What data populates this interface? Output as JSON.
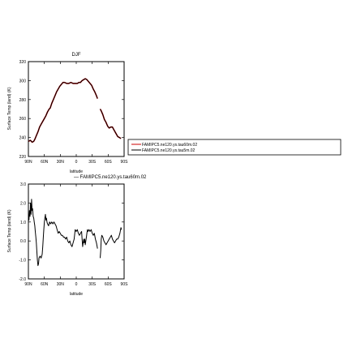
{
  "title": "DJF",
  "legend": {
    "entries": [
      {
        "label": "FAMIPC5.ne120.ys.tau60m.02",
        "color": "#cc0000"
      },
      {
        "label": "FAMIPC5.ne120.ys.tau5m.02",
        "color": "#000000"
      }
    ]
  },
  "diff_label": "— FAMIPC5.ne120.ys.tau60m.02",
  "chart_data": [
    {
      "type": "line",
      "title": "DJF",
      "xlabel": "latitude",
      "ylabel": "Surface Temp (land) (K)",
      "xlim": [
        90,
        -90
      ],
      "ylim": [
        220,
        320
      ],
      "x_ticks": [
        90,
        60,
        30,
        0,
        -30,
        -60,
        -90
      ],
      "x_tick_labels": [
        "90N",
        "60N",
        "30N",
        "0",
        "30S",
        "60S",
        "90S"
      ],
      "y_ticks": [
        220,
        240,
        260,
        280,
        300,
        320
      ],
      "y_tick_labels": [
        "220",
        "240",
        "260",
        "280",
        "300",
        "320"
      ],
      "series": [
        {
          "name": "FAMIPC5.ne120.ys.tau60m.02",
          "color": "#cc0000",
          "segments": [
            [
              [
                90,
                236
              ],
              [
                86,
                237
              ],
              [
                83,
                235
              ],
              [
                80,
                236
              ],
              [
                78,
                238
              ],
              [
                75,
                242
              ],
              [
                72,
                246
              ],
              [
                69,
                251
              ],
              [
                66,
                254
              ],
              [
                63,
                257
              ],
              [
                60,
                260
              ],
              [
                57,
                263
              ],
              [
                54,
                267
              ],
              [
                51,
                270
              ],
              [
                49,
                271
              ],
              [
                46,
                276
              ],
              [
                43,
                280
              ],
              [
                40,
                284
              ],
              [
                37,
                288
              ],
              [
                34,
                291
              ],
              [
                31,
                294
              ],
              [
                28,
                296
              ],
              [
                25,
                298
              ],
              [
                22,
                298
              ],
              [
                18,
                297
              ],
              [
                14,
                297
              ],
              [
                10,
                298
              ],
              [
                6,
                297
              ],
              [
                2,
                297
              ],
              [
                -2,
                297
              ],
              [
                -5,
                298
              ],
              [
                -8,
                298
              ],
              [
                -11,
                300
              ],
              [
                -14,
                301
              ],
              [
                -17,
                302
              ],
              [
                -20,
                301
              ],
              [
                -23,
                299
              ],
              [
                -26,
                297
              ],
              [
                -29,
                295
              ],
              [
                -32,
                291
              ],
              [
                -35,
                288
              ],
              [
                -38,
                284
              ],
              [
                -40,
                281
              ]
            ],
            [
              [
                -45,
                270
              ],
              [
                -47,
                268
              ],
              [
                -50,
                264
              ],
              [
                -53,
                259
              ],
              [
                -56,
                256
              ],
              [
                -59,
                252
              ],
              [
                -62,
                250
              ],
              [
                -65,
                251
              ],
              [
                -68,
                251
              ],
              [
                -71,
                248
              ],
              [
                -74,
                245
              ],
              [
                -78,
                241
              ],
              [
                -81,
                240
              ],
              [
                -84,
                239
              ]
            ]
          ]
        },
        {
          "name": "FAMIPC5.ne120.ys.tau5m.02",
          "color": "#000000",
          "segments": [
            [
              [
                90,
                236
              ],
              [
                86,
                237
              ],
              [
                83,
                235
              ],
              [
                80,
                236
              ],
              [
                78,
                238
              ],
              [
                75,
                242
              ],
              [
                72,
                246
              ],
              [
                69,
                251
              ],
              [
                66,
                254
              ],
              [
                63,
                257
              ],
              [
                60,
                260
              ],
              [
                57,
                263
              ],
              [
                54,
                267
              ],
              [
                51,
                270
              ],
              [
                49,
                271
              ],
              [
                46,
                276
              ],
              [
                43,
                280
              ],
              [
                40,
                284
              ],
              [
                37,
                288
              ],
              [
                34,
                291
              ],
              [
                31,
                294
              ],
              [
                28,
                296
              ],
              [
                25,
                298
              ],
              [
                22,
                298
              ],
              [
                18,
                297
              ],
              [
                14,
                297
              ],
              [
                10,
                298
              ],
              [
                6,
                297
              ],
              [
                2,
                297
              ],
              [
                -2,
                297
              ],
              [
                -5,
                298
              ],
              [
                -8,
                298
              ],
              [
                -11,
                300
              ],
              [
                -14,
                301
              ],
              [
                -17,
                302
              ],
              [
                -20,
                301
              ],
              [
                -23,
                299
              ],
              [
                -26,
                297
              ],
              [
                -29,
                295
              ],
              [
                -32,
                291
              ],
              [
                -35,
                288
              ],
              [
                -38,
                284
              ],
              [
                -40,
                281
              ]
            ],
            [
              [
                -45,
                270
              ],
              [
                -47,
                268
              ],
              [
                -50,
                264
              ],
              [
                -53,
                259
              ],
              [
                -56,
                256
              ],
              [
                -59,
                252
              ],
              [
                -62,
                250
              ],
              [
                -65,
                251
              ],
              [
                -68,
                251
              ],
              [
                -71,
                248
              ],
              [
                -74,
                245
              ],
              [
                -78,
                241
              ],
              [
                -81,
                240
              ],
              [
                -84,
                239
              ]
            ]
          ]
        }
      ]
    },
    {
      "type": "line",
      "xlabel": "latitude",
      "ylabel": "Surface Temp (land) (K)",
      "xlim": [
        90,
        -90
      ],
      "ylim": [
        -2.0,
        3.0
      ],
      "x_ticks": [
        90,
        60,
        30,
        0,
        -30,
        -60,
        -90
      ],
      "x_tick_labels": [
        "90N",
        "60N",
        "30N",
        "0",
        "30S",
        "60S",
        "90S"
      ],
      "y_ticks": [
        -2.0,
        -1.0,
        0.0,
        1.0,
        2.0,
        3.0
      ],
      "y_tick_labels": [
        "-2.0",
        "-1.0",
        "0.0",
        "1.0",
        "2.0",
        "3.0"
      ],
      "series": [
        {
          "name": "FAMIPC5.ne120.ys.tau60m.02",
          "color": "#000000",
          "segments": [
            [
              [
                90,
                1.4
              ],
              [
                89,
                1.1
              ],
              [
                88,
                1.6
              ],
              [
                87,
                1.3
              ],
              [
                86,
                2.0
              ],
              [
                85,
                1.4
              ],
              [
                84,
                2.2
              ],
              [
                83,
                1.6
              ],
              [
                82,
                1.7
              ],
              [
                81,
                1.3
              ],
              [
                80,
                1.2
              ],
              [
                79,
                1.0
              ],
              [
                78,
                0.8
              ],
              [
                77,
                0.5
              ],
              [
                76,
                0.2
              ],
              [
                75,
                -0.1
              ],
              [
                74,
                -0.6
              ],
              [
                73,
                -1.0
              ],
              [
                72,
                -1.3
              ],
              [
                71,
                -1.2
              ],
              [
                70,
                -0.9
              ],
              [
                68,
                -0.8
              ],
              [
                66,
                -0.9
              ],
              [
                64,
                -0.7
              ],
              [
                63,
                -0.3
              ],
              [
                62,
                0.2
              ],
              [
                61,
                0.6
              ],
              [
                60,
                1.0
              ],
              [
                59,
                1.2
              ],
              [
                58,
                1.4
              ],
              [
                57,
                1.1
              ],
              [
                56,
                1.2
              ],
              [
                55,
                1.0
              ],
              [
                54,
                0.9
              ],
              [
                52,
                0.8
              ],
              [
                50,
                1.0
              ],
              [
                48,
                0.9
              ],
              [
                46,
                1.0
              ],
              [
                44,
                0.9
              ],
              [
                42,
                1.0
              ],
              [
                40,
                0.9
              ],
              [
                38,
                0.8
              ],
              [
                36,
                0.6
              ],
              [
                34,
                0.4
              ],
              [
                32,
                0.5
              ],
              [
                30,
                0.4
              ],
              [
                28,
                0.3
              ],
              [
                26,
                0.3
              ],
              [
                24,
                0.2
              ],
              [
                22,
                0.2
              ],
              [
                20,
                0.1
              ],
              [
                18,
                0.2
              ],
              [
                16,
                0.0
              ],
              [
                14,
                -0.1
              ],
              [
                12,
                0.0
              ],
              [
                10,
                -0.2
              ],
              [
                8,
                -0.3
              ],
              [
                6,
                -0.1
              ],
              [
                4,
                0.1
              ],
              [
                2,
                0.6
              ],
              [
                0,
                0.5
              ],
              [
                -2,
                0.6
              ],
              [
                -4,
                0.4
              ],
              [
                -6,
                0.3
              ],
              [
                -8,
                0.4
              ],
              [
                -10,
                0.5
              ],
              [
                -11,
                0.1
              ],
              [
                -12,
                -0.3
              ],
              [
                -13,
                -0.1
              ],
              [
                -14,
                0.1
              ],
              [
                -15,
                -0.1
              ],
              [
                -16,
                0.1
              ],
              [
                -17,
                -0.2
              ],
              [
                -18,
                0.0
              ],
              [
                -19,
                0.2
              ],
              [
                -20,
                0.4
              ],
              [
                -21,
                0.6
              ],
              [
                -22,
                0.5
              ],
              [
                -24,
                0.6
              ],
              [
                -26,
                0.5
              ],
              [
                -28,
                0.6
              ],
              [
                -30,
                0.4
              ],
              [
                -32,
                0.3
              ],
              [
                -34,
                0.4
              ],
              [
                -36,
                0.1
              ],
              [
                -38,
                -0.1
              ],
              [
                -40,
                -0.4
              ]
            ],
            [
              [
                -45,
                -0.9
              ],
              [
                -46,
                -0.5
              ],
              [
                -47,
                0.1
              ],
              [
                -48,
                0.3
              ],
              [
                -50,
                0.2
              ],
              [
                -52,
                0.0
              ],
              [
                -54,
                -0.1
              ],
              [
                -56,
                -0.2
              ],
              [
                -58,
                -0.1
              ],
              [
                -60,
                0.0
              ],
              [
                -62,
                0.1
              ],
              [
                -64,
                0.2
              ],
              [
                -66,
                0.3
              ],
              [
                -68,
                0.1
              ],
              [
                -70,
                0.0
              ],
              [
                -72,
                -0.1
              ],
              [
                -74,
                0.0
              ],
              [
                -76,
                0.1
              ],
              [
                -78,
                0.1
              ],
              [
                -80,
                0.2
              ],
              [
                -82,
                0.4
              ],
              [
                -84,
                0.7
              ],
              [
                -85,
                0.6
              ]
            ]
          ]
        }
      ]
    }
  ]
}
